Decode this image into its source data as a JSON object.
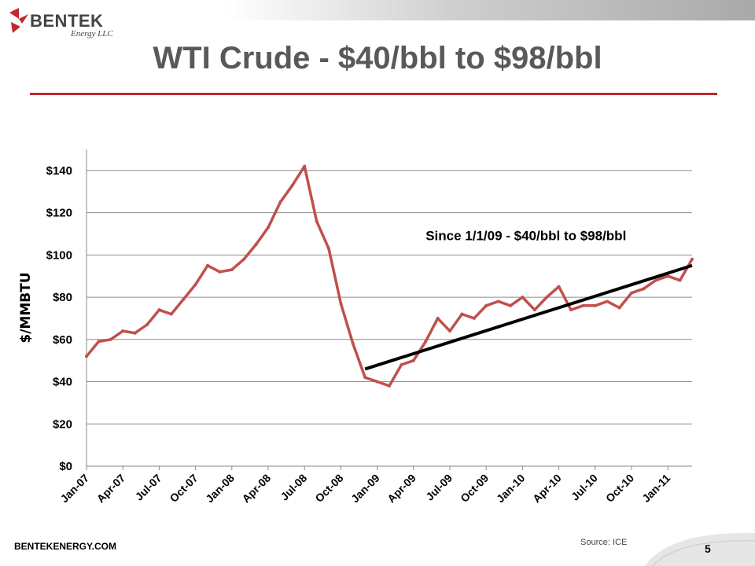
{
  "header": {
    "logo_text": "BENTEK",
    "logo_sub": "Energy LLC",
    "title": "WTI Crude - $40/bbl to $98/bbl"
  },
  "footer": {
    "website": "BENTEKENERGY.COM",
    "source": "Source: ICE",
    "page_number": "5"
  },
  "colors": {
    "series": "#c0504d",
    "trend": "#000000",
    "title_rule": "#c0282d",
    "title_text": "#595959"
  },
  "chart_data": {
    "type": "line",
    "title": "WTI Crude - $40/bbl to $98/bbl",
    "xlabel": "",
    "ylabel": "$/MMBTU",
    "ylim": [
      0,
      150
    ],
    "yticks": [
      "$0",
      "$20",
      "$40",
      "$60",
      "$80",
      "$100",
      "$120",
      "$140"
    ],
    "ytick_values": [
      0,
      20,
      40,
      60,
      80,
      100,
      120,
      140
    ],
    "xticks": [
      "Jan-07",
      "Apr-07",
      "Jul-07",
      "Oct-07",
      "Jan-08",
      "Apr-08",
      "Jul-08",
      "Oct-08",
      "Jan-09",
      "Apr-09",
      "Jul-09",
      "Oct-09",
      "Jan-10",
      "Apr-10",
      "Jul-10",
      "Oct-10",
      "Jan-11"
    ],
    "x_range": [
      "2007-01",
      "2011-03"
    ],
    "grid": "horizontal",
    "legend": "none",
    "series": [
      {
        "values_x": [
          "2007-01",
          "2007-02",
          "2007-03",
          "2007-04",
          "2007-05",
          "2007-06",
          "2007-07",
          "2007-08",
          "2007-09",
          "2007-10",
          "2007-11",
          "2007-12",
          "2008-01",
          "2008-02",
          "2008-03",
          "2008-04",
          "2008-05",
          "2008-06",
          "2008-07",
          "2008-08",
          "2008-09",
          "2008-10",
          "2008-11",
          "2008-12",
          "2009-01",
          "2009-02",
          "2009-03",
          "2009-04",
          "2009-05",
          "2009-06",
          "2009-07",
          "2009-08",
          "2009-09",
          "2009-10",
          "2009-11",
          "2009-12",
          "2010-01",
          "2010-02",
          "2010-03",
          "2010-04",
          "2010-05",
          "2010-06",
          "2010-07",
          "2010-08",
          "2010-09",
          "2010-10",
          "2010-11",
          "2010-12",
          "2011-01",
          "2011-02",
          "2011-03"
        ],
        "values": [
          52,
          59,
          60,
          64,
          63,
          67,
          74,
          72,
          79,
          86,
          95,
          92,
          93,
          98,
          105,
          113,
          125,
          133,
          142,
          116,
          103,
          77,
          58,
          42,
          40,
          38,
          48,
          50,
          59,
          70,
          64,
          72,
          70,
          76,
          78,
          76,
          80,
          74,
          80,
          85,
          74,
          76,
          76,
          78,
          75,
          82,
          84,
          88,
          90,
          88,
          98
        ]
      }
    ],
    "trendline": {
      "x": [
        "2008-12",
        "2011-03"
      ],
      "y": [
        46,
        95
      ]
    },
    "annotations": [
      {
        "text": "Since 1/1/09 - $40/bbl to $98/bbl",
        "x": "2009-05",
        "y": 107
      }
    ]
  }
}
